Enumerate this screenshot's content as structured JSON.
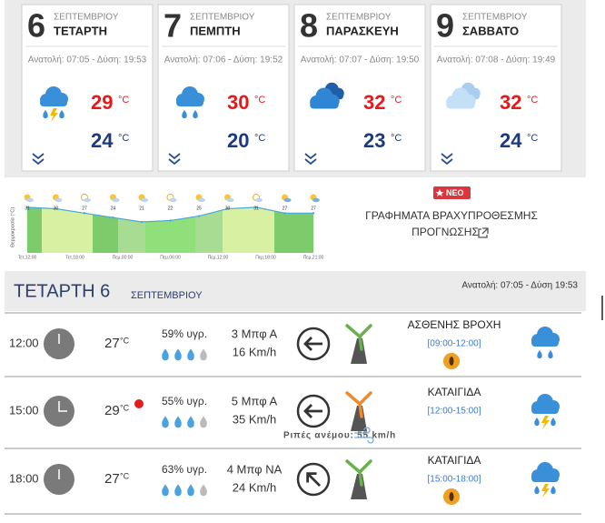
{
  "days": [
    {
      "day": "6",
      "month": "ΣΕΠΤΕΜΒΡΙΟΥ",
      "weekday": "ΤΕΤΑΡΤΗ",
      "sun": "Ανατολή: 07:05 - Δύση: 19:53",
      "high": "29",
      "low": "24"
    },
    {
      "day": "7",
      "month": "ΣΕΠΤΕΜΒΡΙΟΥ",
      "weekday": "ΠΕΜΠΤΗ",
      "sun": "Ανατολή: 07:06 - Δύση: 19:52",
      "high": "30",
      "low": "20"
    },
    {
      "day": "8",
      "month": "ΣΕΠΤΕΜΒΡΙΟΥ",
      "weekday": "ΠΑΡΑΣΚΕΥΗ",
      "sun": "Ανατολή: 07:07 - Δύση: 19:50",
      "high": "32",
      "low": "23"
    },
    {
      "day": "9",
      "month": "ΣΕΠΤΕΜΒΡΙΟΥ",
      "weekday": "ΣΑΒΒΑΤΟ",
      "sun": "Ανατολή: 07:08 - Δύση: 19:49",
      "high": "32",
      "low": "24"
    }
  ],
  "temp_unit": "°C",
  "mini_chart": {
    "type": "area",
    "ylabel": "Θερμοκρασία (°C)",
    "values": [
      31,
      30,
      27,
      24,
      21,
      22,
      25,
      30,
      31,
      27,
      27
    ],
    "ylim": [
      0,
      34
    ],
    "x_labels": [
      "Τετ,12:00",
      "Τετ,18:00",
      "Πεμ,00:00",
      "Πεμ,06:00",
      "Πεμ,12:00",
      "Πεμ,18:00",
      "Πεμ,21:00"
    ]
  },
  "promo": {
    "badge": "ΝΕΟ",
    "line1": "ΓΡΑΦΗΜΑΤΑ ΒΡΑΧΥΠΡΟΘΕΣΜΗΣ",
    "line2": "ΠΡΟΓΝΩΣΗΣ"
  },
  "today": {
    "title": "ΤΕΤΑΡΤΗ 6",
    "month": "ΣΕΠΤΕΜΒΡΙΟΥ",
    "sun": "Ανατολή: 07:05 - Δύση 19:53"
  },
  "hours": [
    {
      "time": "12:00",
      "temp": "27",
      "humidity": "59% υγρ.",
      "wind": "3 Μπφ Α",
      "speed": "16 Km/h",
      "desc": "ΑΣΘΕΝΗΣ ΒΡΟΧΗ",
      "range": "[09:00-12:00]"
    },
    {
      "time": "15:00",
      "temp": "29",
      "humidity": "55% υγρ.",
      "wind": "5 Μπφ Α",
      "speed": "35 Km/h",
      "desc": "ΚΑΤΑΙΓΙΔΑ",
      "range": "[12:00-15:00]",
      "gust": "Ριπές ανέμου: 55 km/h"
    },
    {
      "time": "18:00",
      "temp": "27",
      "humidity": "63% υγρ.",
      "wind": "4 Μπφ ΝΑ",
      "speed": "24 Km/h",
      "desc": "ΚΑΤΑΙΓΙΔΑ",
      "range": "[15:00-18:00]"
    }
  ]
}
